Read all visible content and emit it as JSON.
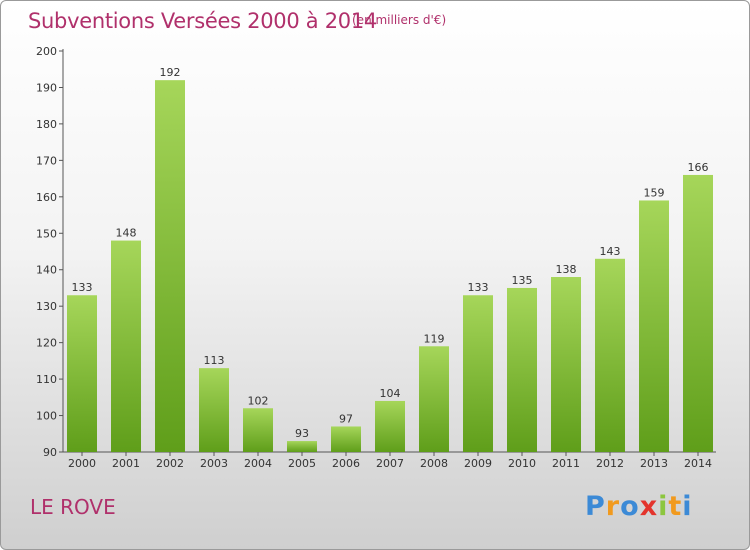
{
  "header": {
    "title": "Subventions Versées 2000 à 2014",
    "subtitle": "(en milliers d'€)"
  },
  "footer": {
    "commune": "LE ROVE",
    "brand": "Proxiti"
  },
  "colors": {
    "title": "#b0306b",
    "bar_light": "#a6d65a",
    "bar_dark": "#5f9e1a"
  },
  "chart_data": {
    "type": "bar",
    "title": "Subventions Versées 2000 à 2014",
    "subtitle": "(en milliers d'€)",
    "categories": [
      "2000",
      "2001",
      "2002",
      "2003",
      "2004",
      "2005",
      "2006",
      "2007",
      "2008",
      "2009",
      "2010",
      "2011",
      "2012",
      "2013",
      "2014"
    ],
    "values": [
      133,
      148,
      192,
      113,
      102,
      93,
      97,
      104,
      119,
      133,
      135,
      138,
      143,
      159,
      166
    ],
    "ylim": [
      90,
      200
    ],
    "yticks": [
      90,
      100,
      110,
      120,
      130,
      140,
      150,
      160,
      170,
      180,
      190,
      200
    ],
    "xlabel": "",
    "ylabel": "",
    "data_labels": true,
    "grid": false
  }
}
